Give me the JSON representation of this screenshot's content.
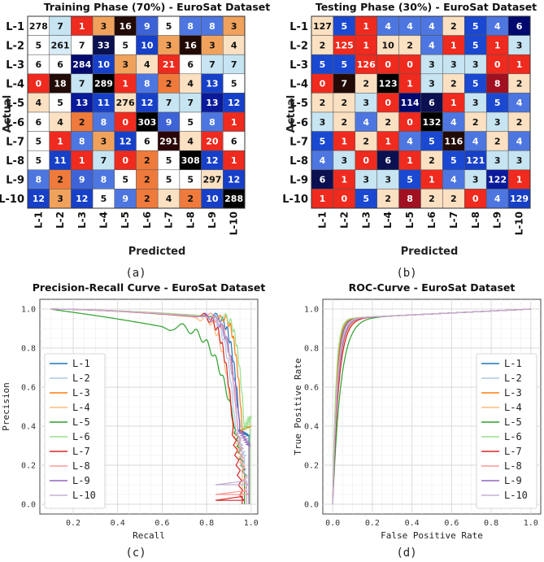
{
  "chart_data": [
    {
      "type": "heatmap",
      "title": "Training Phase (70%) - EuroSat Dataset",
      "xlabel": "Predicted",
      "ylabel": "Actual",
      "caption": "(a)",
      "labels": [
        "L-1",
        "L-2",
        "L-3",
        "L-4",
        "L-5",
        "L-6",
        "L-7",
        "L-8",
        "L-9",
        "L-10"
      ],
      "matrix": [
        [
          278,
          7,
          1,
          3,
          16,
          9,
          5,
          8,
          8,
          3
        ],
        [
          5,
          261,
          7,
          33,
          5,
          10,
          3,
          16,
          3,
          4
        ],
        [
          6,
          6,
          284,
          10,
          3,
          4,
          21,
          6,
          7,
          7
        ],
        [
          0,
          18,
          7,
          289,
          1,
          8,
          2,
          4,
          13,
          5
        ],
        [
          4,
          5,
          13,
          11,
          276,
          12,
          7,
          7,
          13,
          12
        ],
        [
          6,
          4,
          2,
          8,
          0,
          303,
          9,
          5,
          8,
          1
        ],
        [
          5,
          1,
          8,
          3,
          12,
          6,
          291,
          4,
          20,
          6
        ],
        [
          5,
          11,
          1,
          7,
          0,
          2,
          5,
          308,
          12,
          1
        ],
        [
          8,
          2,
          9,
          8,
          5,
          2,
          5,
          5,
          297,
          12
        ],
        [
          12,
          3,
          12,
          5,
          9,
          2,
          4,
          2,
          10,
          288
        ]
      ],
      "colors": [
        [
          "#ffffff",
          "#c6e4f2",
          "#ef2a1e",
          "#f0a25c",
          "#220a06",
          "#3d63d6",
          "#ffffff",
          "#4d76e0",
          "#4d76e0",
          "#f0a25c"
        ],
        [
          "#ffffff",
          "#d7ecf6",
          "#ffffff",
          "#0a1050",
          "#ffffff",
          "#1740c8",
          "#f0a25c",
          "#220a06",
          "#f0a25c",
          "#fbe0c2"
        ],
        [
          "#ffffff",
          "#ffffff",
          "#000a6e",
          "#1740c8",
          "#f0a25c",
          "#fbe0c2",
          "#ef2a1e",
          "#ffffff",
          "#c6e4f2",
          "#c6e4f2"
        ],
        [
          "#ef2a1e",
          "#220a06",
          "#c6e4f2",
          "#000000",
          "#ef2a1e",
          "#4d76e0",
          "#f07a3c",
          "#fbe0c2",
          "#1740c8",
          "#ffffff"
        ],
        [
          "#fbe0c2",
          "#ffffff",
          "#0a1a9a",
          "#1740c8",
          "#fbe0c2",
          "#1740c8",
          "#c6e4f2",
          "#c6e4f2",
          "#0a1a9a",
          "#1740c8"
        ],
        [
          "#ffffff",
          "#fbe0c2",
          "#f07a3c",
          "#4d76e0",
          "#ef2a1e",
          "#000000",
          "#3d63d6",
          "#ffffff",
          "#4d76e0",
          "#ef2a1e"
        ],
        [
          "#ffffff",
          "#ef2a1e",
          "#4d76e0",
          "#f0a25c",
          "#1740c8",
          "#ffffff",
          "#2a0608",
          "#fbe0c2",
          "#ef2a1e",
          "#ffffff"
        ],
        [
          "#ffffff",
          "#1740c8",
          "#ef2a1e",
          "#c6e4f2",
          "#ef2a1e",
          "#f07a3c",
          "#ffffff",
          "#000000",
          "#1740c8",
          "#ef2a1e"
        ],
        [
          "#4d76e0",
          "#f07a3c",
          "#3d63d6",
          "#4d76e0",
          "#ffffff",
          "#f07a3c",
          "#ffffff",
          "#ffffff",
          "#fbe0c2",
          "#1740c8"
        ],
        [
          "#1740c8",
          "#f0a25c",
          "#1740c8",
          "#ffffff",
          "#4d76e0",
          "#f07a3c",
          "#fbe0c2",
          "#f07a3c",
          "#1740c8",
          "#000000"
        ]
      ]
    },
    {
      "type": "heatmap",
      "title": "Testing Phase (30%) - EuroSat Dataset",
      "xlabel": "Predicted",
      "ylabel": "Actual",
      "caption": "(b)",
      "labels": [
        "L-1",
        "L-2",
        "L-3",
        "L-4",
        "L-5",
        "L-6",
        "L-7",
        "L-8",
        "L-9",
        "L-10"
      ],
      "matrix": [
        [
          127,
          5,
          1,
          4,
          4,
          4,
          2,
          5,
          4,
          6
        ],
        [
          2,
          125,
          1,
          10,
          2,
          4,
          1,
          5,
          1,
          3
        ],
        [
          5,
          5,
          126,
          0,
          0,
          3,
          3,
          3,
          0,
          1
        ],
        [
          0,
          7,
          2,
          123,
          1,
          3,
          2,
          5,
          8,
          2
        ],
        [
          2,
          2,
          3,
          0,
          114,
          6,
          1,
          3,
          5,
          4
        ],
        [
          3,
          2,
          4,
          2,
          0,
          132,
          4,
          2,
          3,
          2
        ],
        [
          5,
          1,
          2,
          1,
          4,
          5,
          116,
          4,
          2,
          4
        ],
        [
          4,
          3,
          0,
          6,
          1,
          2,
          5,
          121,
          3,
          3
        ],
        [
          6,
          1,
          3,
          3,
          5,
          1,
          4,
          3,
          122,
          1
        ],
        [
          1,
          0,
          5,
          2,
          8,
          2,
          2,
          0,
          4,
          129
        ]
      ],
      "colors": [
        [
          "#fbe0c2",
          "#1a48d0",
          "#ef2a1e",
          "#4d76e0",
          "#4d76e0",
          "#4d76e0",
          "#fbe0c2",
          "#1a48d0",
          "#4d76e0",
          "#000a6e"
        ],
        [
          "#fbe0c2",
          "#ef2a1e",
          "#ef2a1e",
          "#fbe0c2",
          "#fbe0c2",
          "#4d76e0",
          "#ef2a1e",
          "#1a48d0",
          "#ef2a1e",
          "#c6e4f2"
        ],
        [
          "#1a48d0",
          "#1a48d0",
          "#ef2a1e",
          "#ef2a1e",
          "#ef2a1e",
          "#c6e4f2",
          "#c6e4f2",
          "#c6e4f2",
          "#ef2a1e",
          "#ef2a1e"
        ],
        [
          "#ef2a1e",
          "#220a06",
          "#fbe0c2",
          "#000000",
          "#ef2a1e",
          "#c6e4f2",
          "#fbe0c2",
          "#1a48d0",
          "#a01020",
          "#fbe0c2"
        ],
        [
          "#fbe0c2",
          "#fbe0c2",
          "#c6e4f2",
          "#ef2a1e",
          "#000a6e",
          "#0a1050",
          "#ef2a1e",
          "#c6e4f2",
          "#1a48d0",
          "#4d76e0"
        ],
        [
          "#c6e4f2",
          "#fbe0c2",
          "#4d76e0",
          "#fbe0c2",
          "#ef2a1e",
          "#000000",
          "#4d76e0",
          "#fbe0c2",
          "#c6e4f2",
          "#fbe0c2"
        ],
        [
          "#1a48d0",
          "#ef2a1e",
          "#fbe0c2",
          "#ef2a1e",
          "#4d76e0",
          "#1a48d0",
          "#220a06",
          "#4d76e0",
          "#fbe0c2",
          "#4d76e0"
        ],
        [
          "#4d76e0",
          "#c6e4f2",
          "#ef2a1e",
          "#0a1050",
          "#ef2a1e",
          "#fbe0c2",
          "#1a48d0",
          "#1740c8",
          "#c6e4f2",
          "#c6e4f2"
        ],
        [
          "#0a1050",
          "#ef2a1e",
          "#c6e4f2",
          "#c6e4f2",
          "#1a48d0",
          "#ef2a1e",
          "#4d76e0",
          "#c6e4f2",
          "#0a1a9a",
          "#ef2a1e"
        ],
        [
          "#ef2a1e",
          "#ef2a1e",
          "#1a48d0",
          "#fbe0c2",
          "#a01020",
          "#fbe0c2",
          "#fbe0c2",
          "#ef2a1e",
          "#4d76e0",
          "#1740c8"
        ]
      ]
    },
    {
      "type": "line",
      "title": "Precision-Recall Curve - EuroSat Dataset",
      "xlabel": "Recall",
      "ylabel": "Precision",
      "caption": "(c)",
      "xlim": [
        0.05,
        1.03
      ],
      "ylim": [
        -0.05,
        1.05
      ],
      "xticks": [
        "0.2",
        "0.4",
        "0.6",
        "0.8",
        "1.0"
      ],
      "yticks": [
        "0.0",
        "0.2",
        "0.4",
        "0.6",
        "0.8",
        "1.0"
      ],
      "grid": true,
      "legend": "center-left",
      "series": [
        {
          "name": "L-1",
          "color": "#1f77b4",
          "knee": 0.82,
          "tip": 0.95,
          "floor": 0.35
        },
        {
          "name": "L-2",
          "color": "#aec7e8",
          "knee": 0.78,
          "tip": 0.93,
          "floor": 0.25
        },
        {
          "name": "L-3",
          "color": "#ff7f0e",
          "knee": 0.85,
          "tip": 0.96,
          "floor": 0.4
        },
        {
          "name": "L-4",
          "color": "#ffbb78",
          "knee": 0.74,
          "tip": 0.92,
          "floor": 0.2
        },
        {
          "name": "L-5",
          "color": "#2ca02c",
          "knee": 0.6,
          "tip": 0.93,
          "floor": 0.15
        },
        {
          "name": "L-6",
          "color": "#98df8a",
          "knee": 0.86,
          "tip": 0.97,
          "floor": 0.45
        },
        {
          "name": "L-7",
          "color": "#d62728",
          "knee": 0.76,
          "tip": 0.92,
          "floor": 0.02
        },
        {
          "name": "L-8",
          "color": "#ff9896",
          "knee": 0.8,
          "tip": 0.94,
          "floor": 0.05
        },
        {
          "name": "L-9",
          "color": "#9467bd",
          "knee": 0.78,
          "tip": 0.95,
          "floor": 0.3
        },
        {
          "name": "L-10",
          "color": "#c5b0d5",
          "knee": 0.79,
          "tip": 0.94,
          "floor": 0.1
        }
      ]
    },
    {
      "type": "line",
      "title": "ROC-Curve - EuroSat Dataset",
      "xlabel": "False Positive Rate",
      "ylabel": "True Positive Rate",
      "caption": "(d)",
      "xlim": [
        -0.05,
        1.05
      ],
      "ylim": [
        -0.05,
        1.05
      ],
      "xticks": [
        "0.0",
        "0.2",
        "0.4",
        "0.6",
        "0.8",
        "1.0"
      ],
      "yticks": [
        "0.0",
        "0.2",
        "0.4",
        "0.6",
        "0.8",
        "1.0"
      ],
      "grid": true,
      "legend": "center-right",
      "series": [
        {
          "name": "L-1",
          "color": "#1f77b4",
          "k": 0.02
        },
        {
          "name": "L-2",
          "color": "#aec7e8",
          "k": 0.025
        },
        {
          "name": "L-3",
          "color": "#ff7f0e",
          "k": 0.018
        },
        {
          "name": "L-4",
          "color": "#ffbb78",
          "k": 0.028
        },
        {
          "name": "L-5",
          "color": "#2ca02c",
          "k": 0.04
        },
        {
          "name": "L-6",
          "color": "#98df8a",
          "k": 0.016
        },
        {
          "name": "L-7",
          "color": "#d62728",
          "k": 0.03
        },
        {
          "name": "L-8",
          "color": "#ff9896",
          "k": 0.022
        },
        {
          "name": "L-9",
          "color": "#9467bd",
          "k": 0.026
        },
        {
          "name": "L-10",
          "color": "#c5b0d5",
          "k": 0.024
        }
      ]
    }
  ]
}
